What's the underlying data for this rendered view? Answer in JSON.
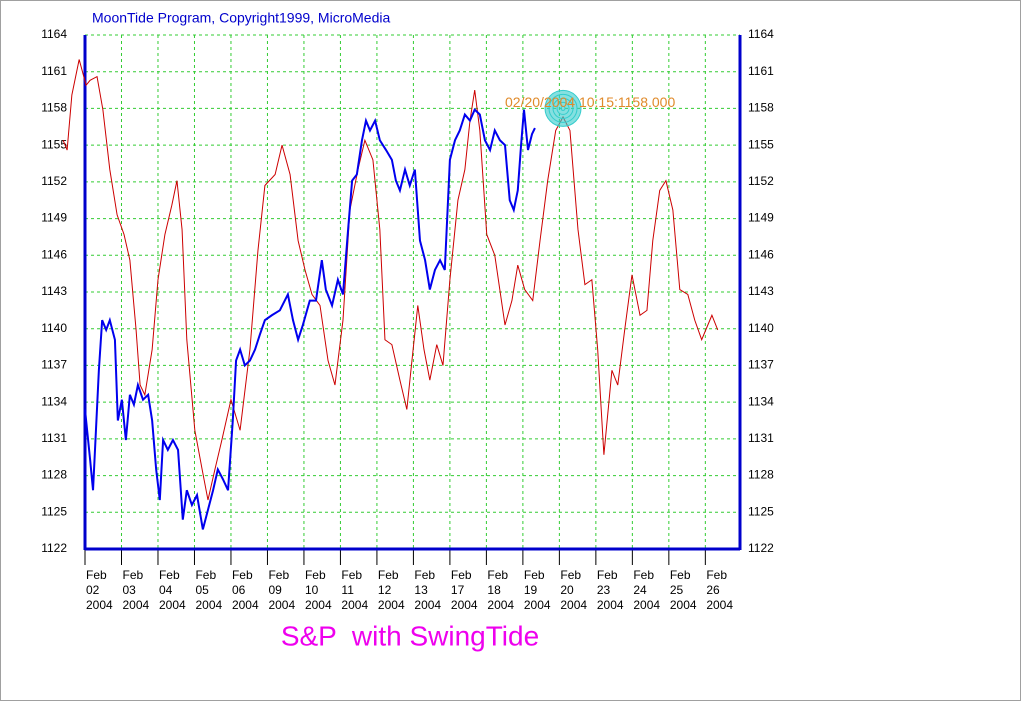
{
  "chart_data": {
    "type": "line",
    "title": "MoonTide Program, Copyright1999, MicroMedia",
    "subtitle": "S&P  with SwingTide",
    "annotation": {
      "text": "02/20/2004 10:15:1158.000",
      "x": 13.1,
      "y": 1158
    },
    "xlim": [
      0,
      17.95
    ],
    "ylim": [
      1122,
      1164
    ],
    "yticks": [
      1122,
      1125,
      1128,
      1131,
      1134,
      1137,
      1140,
      1143,
      1146,
      1149,
      1152,
      1155,
      1158,
      1161,
      1164
    ],
    "xticks": [
      {
        "value": 0,
        "label": "Feb 02 2004"
      },
      {
        "value": 1,
        "label": "Feb 03 2004"
      },
      {
        "value": 2,
        "label": "Feb 04 2004"
      },
      {
        "value": 3,
        "label": "Feb 05 2004"
      },
      {
        "value": 4,
        "label": "Feb 06 2004"
      },
      {
        "value": 5,
        "label": "Feb 09 2004"
      },
      {
        "value": 6,
        "label": "Feb 10 2004"
      },
      {
        "value": 7,
        "label": "Feb 11 2004"
      },
      {
        "value": 8,
        "label": "Feb 12 2004"
      },
      {
        "value": 9,
        "label": "Feb 13 2004"
      },
      {
        "value": 10,
        "label": "Feb 17 2004"
      },
      {
        "value": 11,
        "label": "Feb 18 2004"
      },
      {
        "value": 12,
        "label": "Feb 19 2004"
      },
      {
        "value": 13,
        "label": "Feb 20 2004"
      },
      {
        "value": 14,
        "label": "Feb 23 2004"
      },
      {
        "value": 15,
        "label": "Feb 24 2004"
      },
      {
        "value": 16,
        "label": "Feb 25 2004"
      },
      {
        "value": 17,
        "label": "Feb 26 2004"
      }
    ],
    "grid": true,
    "grid_color": "#33cc33",
    "axis_color": "#0000cc",
    "title_color": "#0000cc",
    "subtitle_color": "#ee00ee",
    "annotation_color": "#e08a2a",
    "marker_color": "#33cccc",
    "series": [
      {
        "color": "#cc0000",
        "x": [
          -0.6,
          -0.49,
          -0.36,
          -0.16,
          0.03,
          0.14,
          0.33,
          0.49,
          0.68,
          0.88,
          1.07,
          1.23,
          1.4,
          1.51,
          1.64,
          1.84,
          2.0,
          2.19,
          2.38,
          2.52,
          2.66,
          2.79,
          3.01,
          3.21,
          3.37,
          3.56,
          3.75,
          4.0,
          4.25,
          4.52,
          4.74,
          4.93,
          5.21,
          5.4,
          5.62,
          5.84,
          6.03,
          6.22,
          6.44,
          6.66,
          6.85,
          7.07,
          7.26,
          7.48,
          7.67,
          7.89,
          8.08,
          8.22,
          8.41,
          8.63,
          8.82,
          8.96,
          9.12,
          9.29,
          9.45,
          9.64,
          9.81,
          10.0,
          10.22,
          10.41,
          10.55,
          10.68,
          10.82,
          11.01,
          11.23,
          11.51,
          11.7,
          11.86,
          12.05,
          12.27,
          12.47,
          12.68,
          12.9,
          13.1,
          13.29,
          13.51,
          13.7,
          13.89,
          14.05,
          14.22,
          14.44,
          14.6,
          14.79,
          14.99,
          15.21,
          15.4,
          15.56,
          15.75,
          15.92,
          16.11,
          16.3,
          16.52,
          16.71,
          16.9,
          17.18,
          17.34
        ],
        "values": [
          1155.4,
          1154.6,
          1159.1,
          1162.0,
          1159.9,
          1160.3,
          1160.6,
          1157.9,
          1153.0,
          1149.3,
          1147.7,
          1145.6,
          1139.9,
          1135.4,
          1134.6,
          1138.3,
          1144.0,
          1147.7,
          1150.1,
          1152.1,
          1148.1,
          1139.1,
          1131.7,
          1128.5,
          1126.0,
          1128.5,
          1130.9,
          1134.2,
          1131.7,
          1138.3,
          1146.4,
          1151.7,
          1152.6,
          1155.0,
          1152.6,
          1147.2,
          1144.8,
          1142.8,
          1141.9,
          1137.4,
          1135.4,
          1140.7,
          1149.7,
          1153.0,
          1155.4,
          1153.8,
          1148.1,
          1139.1,
          1138.7,
          1135.8,
          1133.4,
          1137.4,
          1141.9,
          1138.3,
          1135.8,
          1138.7,
          1137.0,
          1144.0,
          1150.5,
          1153.0,
          1157.0,
          1159.5,
          1156.2,
          1147.7,
          1146.0,
          1140.3,
          1142.3,
          1145.2,
          1143.2,
          1142.3,
          1147.2,
          1152.1,
          1156.2,
          1157.3,
          1156.2,
          1148.1,
          1143.6,
          1144.0,
          1138.3,
          1129.7,
          1136.6,
          1135.4,
          1139.9,
          1144.4,
          1141.1,
          1141.5,
          1147.2,
          1151.3,
          1152.1,
          1149.7,
          1143.2,
          1142.8,
          1140.7,
          1139.1,
          1141.1,
          1139.9
        ]
      },
      {
        "color": "#0000ee",
        "x": [
          0.0,
          0.14,
          0.22,
          0.3,
          0.38,
          0.47,
          0.58,
          0.68,
          0.82,
          0.9,
          1.01,
          1.12,
          1.23,
          1.34,
          1.45,
          1.59,
          1.73,
          1.84,
          1.95,
          2.05,
          2.14,
          2.27,
          2.41,
          2.55,
          2.68,
          2.79,
          2.93,
          3.07,
          3.23,
          3.37,
          3.51,
          3.64,
          3.78,
          3.92,
          4.05,
          4.14,
          4.25,
          4.38,
          4.52,
          4.66,
          4.79,
          4.93,
          5.12,
          5.34,
          5.56,
          5.7,
          5.84,
          5.97,
          6.16,
          6.33,
          6.49,
          6.6,
          6.77,
          6.93,
          7.07,
          7.21,
          7.32,
          7.45,
          7.59,
          7.7,
          7.81,
          7.95,
          8.08,
          8.25,
          8.41,
          8.52,
          8.63,
          8.77,
          8.9,
          9.04,
          9.18,
          9.32,
          9.45,
          9.59,
          9.73,
          9.86,
          10.0,
          10.14,
          10.27,
          10.41,
          10.55,
          10.68,
          10.82,
          10.96,
          11.1,
          11.23,
          11.37,
          11.51,
          11.64,
          11.75,
          11.86,
          11.95,
          12.03,
          12.14,
          12.25,
          12.33
        ],
        "values": [
          1133.4,
          1129.3,
          1126.8,
          1131.7,
          1136.6,
          1140.7,
          1139.9,
          1140.7,
          1139.1,
          1132.5,
          1134.2,
          1130.9,
          1134.6,
          1133.8,
          1135.4,
          1134.2,
          1134.6,
          1132.5,
          1128.5,
          1126.0,
          1130.9,
          1130.1,
          1130.9,
          1130.1,
          1124.4,
          1126.8,
          1125.6,
          1126.4,
          1123.6,
          1125.2,
          1126.8,
          1128.5,
          1127.7,
          1126.8,
          1132.5,
          1137.4,
          1138.3,
          1137.0,
          1137.4,
          1138.3,
          1139.5,
          1140.7,
          1141.1,
          1141.5,
          1142.8,
          1140.7,
          1139.1,
          1140.3,
          1142.3,
          1142.3,
          1145.6,
          1143.2,
          1141.9,
          1144.0,
          1142.8,
          1148.1,
          1152.1,
          1152.6,
          1155.4,
          1157.0,
          1156.2,
          1157.0,
          1155.4,
          1154.6,
          1153.8,
          1152.1,
          1151.3,
          1153.0,
          1151.7,
          1153.0,
          1147.2,
          1145.6,
          1143.2,
          1144.8,
          1145.6,
          1144.8,
          1153.8,
          1155.4,
          1156.2,
          1157.5,
          1157.0,
          1157.9,
          1157.5,
          1155.4,
          1154.6,
          1156.2,
          1155.4,
          1155.0,
          1150.5,
          1149.7,
          1151.3,
          1155.0,
          1157.9,
          1154.6,
          1155.9,
          1156.4
        ]
      }
    ]
  }
}
